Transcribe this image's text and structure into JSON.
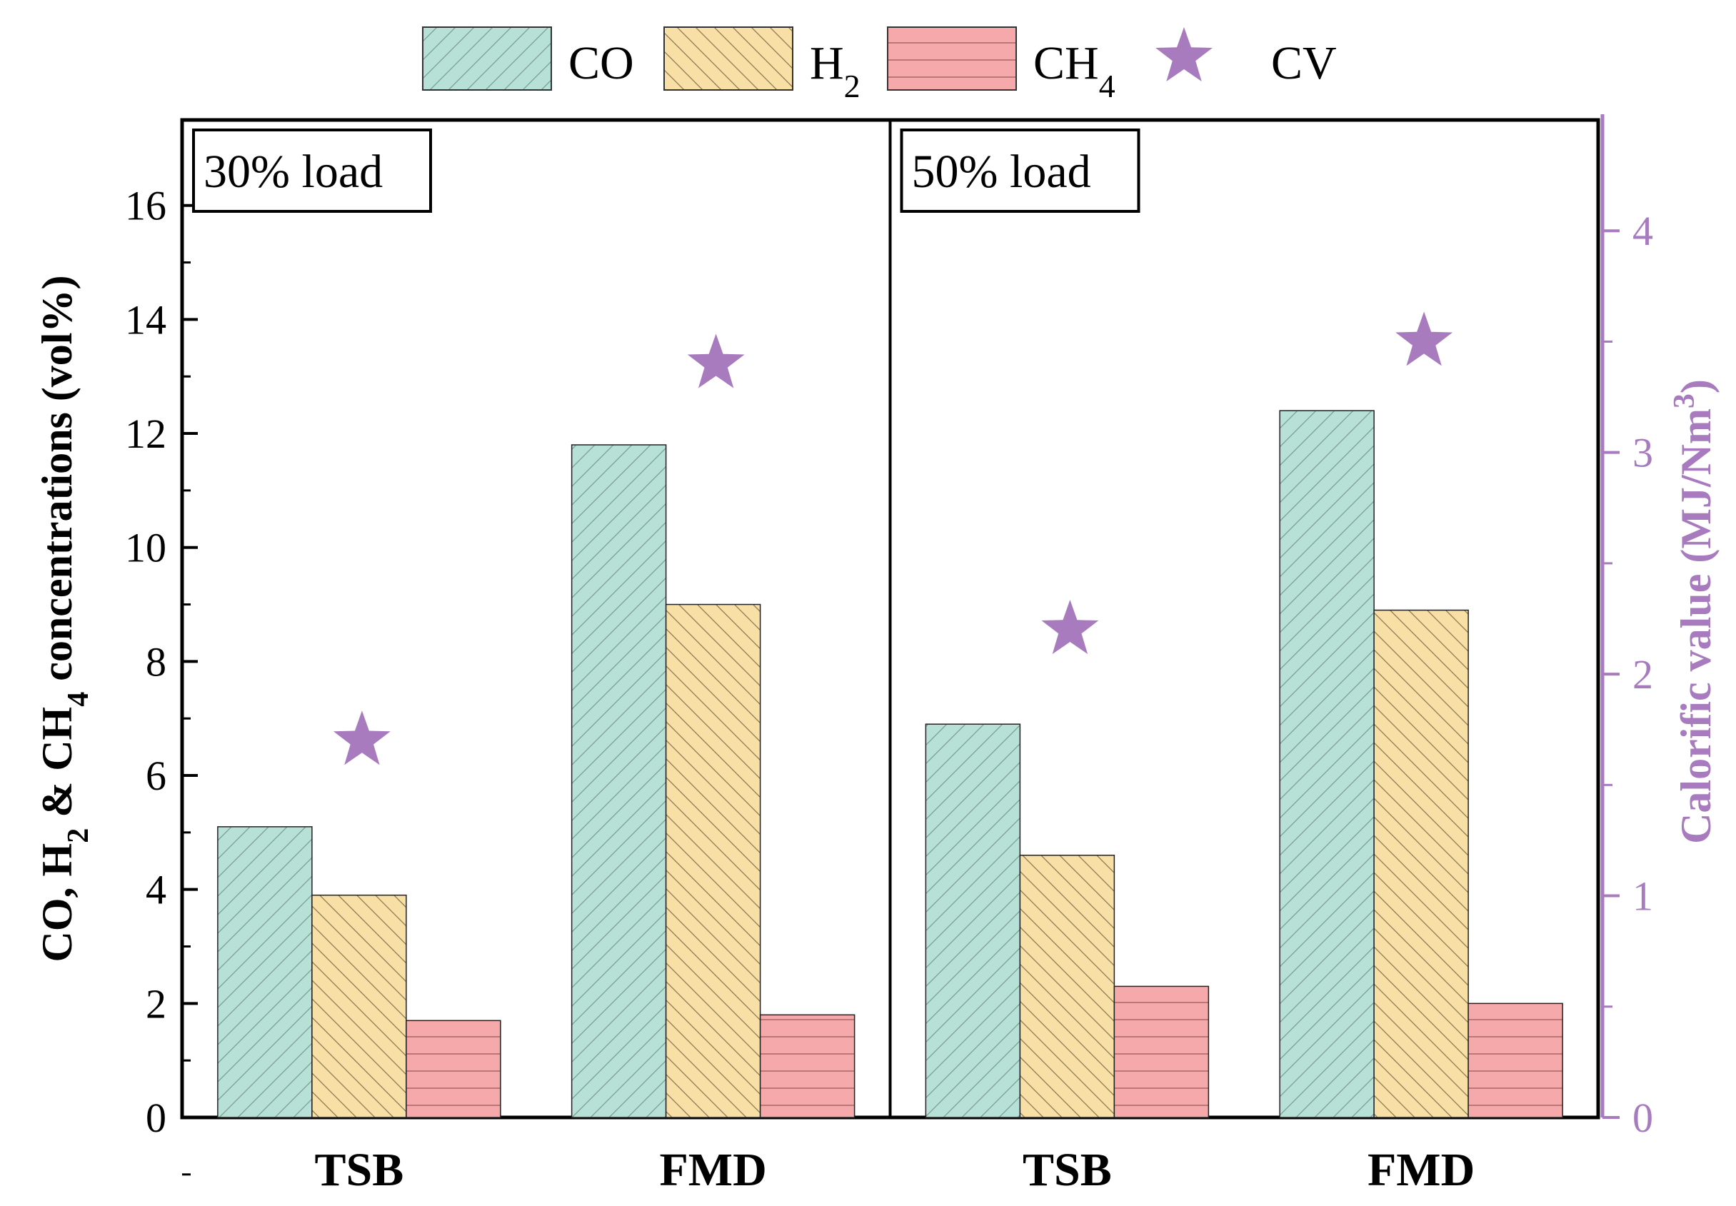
{
  "colors": {
    "co": "#b7e1d6",
    "h2": "#f8dfa6",
    "ch4": "#f5a9aa",
    "cv": "#a87bbf",
    "axis": "#000000"
  },
  "chart_data": {
    "type": "bar",
    "ylabel": {
      "pre": "CO, H",
      "sub1": "2",
      "mid": " & CH",
      "sub2": "4",
      "post": " concentrations (vol%)"
    },
    "y2label": {
      "pre": "Calorific value (MJ/Nm",
      "sup": "3",
      "post": ")"
    },
    "ylim": [
      0,
      17.5
    ],
    "y2lim": [
      0,
      4.5
    ],
    "yticks": [
      0,
      2,
      4,
      6,
      8,
      10,
      12,
      14,
      16
    ],
    "y2ticks": [
      0,
      1,
      2,
      3,
      4
    ],
    "legend": {
      "placement": "top",
      "entries": [
        {
          "key": "co",
          "label": "CO",
          "sub": ""
        },
        {
          "key": "h2",
          "label": "H",
          "sub": "2"
        },
        {
          "key": "ch4",
          "label": "CH",
          "sub": "4"
        },
        {
          "key": "cv",
          "label": "CV",
          "sub": ""
        }
      ]
    },
    "panels": [
      {
        "label": "30% load",
        "categories": [
          "TSB",
          "FMD"
        ],
        "series": [
          {
            "key": "co",
            "values": [
              5.1,
              11.8
            ]
          },
          {
            "key": "h2",
            "values": [
              3.9,
              9.0
            ]
          },
          {
            "key": "ch4",
            "values": [
              1.7,
              1.8
            ]
          }
        ],
        "cv": [
          1.7,
          3.4
        ]
      },
      {
        "label": "50% load",
        "categories": [
          "TSB",
          "FMD"
        ],
        "series": [
          {
            "key": "co",
            "values": [
              6.9,
              12.4
            ]
          },
          {
            "key": "h2",
            "values": [
              4.6,
              8.9
            ]
          },
          {
            "key": "ch4",
            "values": [
              2.3,
              2.0
            ]
          }
        ],
        "cv": [
          2.2,
          3.5
        ]
      }
    ]
  }
}
